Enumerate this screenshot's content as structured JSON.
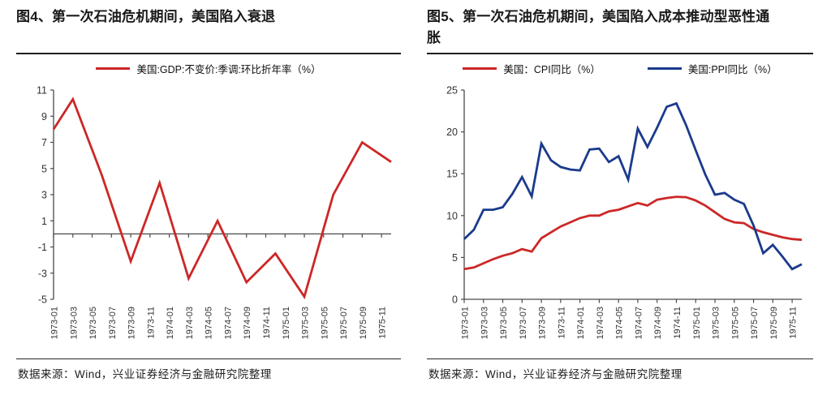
{
  "colors": {
    "red": "#cc2727",
    "blue": "#1a3a8c",
    "axis": "#4a4a4a",
    "text": "#1a1a1a"
  },
  "left_panel": {
    "title": "图4、第一次石油危机期间，美国陷入衰退",
    "source": "数据来源：Wind，兴业证券经济与金融研究院整理",
    "chart_data": {
      "type": "line",
      "title": "图4、第一次石油危机期间，美国陷入衰退",
      "ylim": [
        -5,
        11
      ],
      "y_ticks": [
        11,
        9,
        7,
        5,
        3,
        1,
        -1,
        -3,
        -5
      ],
      "x_axis_at_y": 0,
      "grid": false,
      "legend_position": "top",
      "x_domain_months": 35,
      "x_tick_labels": [
        "1973-01",
        "1973-03",
        "1973-05",
        "1973-07",
        "1973-09",
        "1973-11",
        "1974-01",
        "1974-03",
        "1974-05",
        "1974-07",
        "1974-09",
        "1974-11",
        "1975-01",
        "1975-03",
        "1975-05",
        "1975-07",
        "1975-09",
        "1975-11"
      ],
      "series": [
        {
          "key": "gdp",
          "name": "美国:GDP:不变价:季调:环比折年率（%）",
          "color": "#cc2727",
          "x_months_labels": [
            "1973-01",
            "1973-03",
            "1973-06",
            "1973-09",
            "1973-12",
            "1974-03",
            "1974-06",
            "1974-09",
            "1974-12",
            "1975-03",
            "1975-06",
            "1975-09",
            "1975-12"
          ],
          "x": [
            0,
            2,
            5,
            8,
            11,
            14,
            17,
            20,
            23,
            26,
            29,
            32,
            35
          ],
          "values": [
            8.0,
            10.3,
            4.5,
            -2.1,
            3.9,
            -3.4,
            1.0,
            -3.7,
            -1.5,
            -4.8,
            3.0,
            7.0,
            5.5
          ]
        }
      ]
    }
  },
  "right_panel": {
    "title": "图5、第一次石油危机期间，美国陷入成本推动型恶性通胀",
    "source": "数据来源：Wind，兴业证券经济与金融研究院整理",
    "chart_data": {
      "type": "line",
      "title": "图5、第一次石油危机期间，美国陷入成本推动型恶性通胀",
      "ylim": [
        0,
        25
      ],
      "y_ticks": [
        25,
        20,
        15,
        10,
        5,
        0
      ],
      "x_axis_at_y": 0,
      "grid": false,
      "legend_position": "top",
      "x_domain_months": 35,
      "x_tick_labels": [
        "1973-01",
        "1973-03",
        "1973-05",
        "1973-07",
        "1973-09",
        "1973-11",
        "1974-01",
        "1974-03",
        "1974-05",
        "1974-07",
        "1974-09",
        "1974-11",
        "1975-01",
        "1975-03",
        "1975-05",
        "1975-07",
        "1975-09",
        "1975-11"
      ],
      "x_months_monthly": [
        "1973-01",
        "1973-02",
        "1973-03",
        "1973-04",
        "1973-05",
        "1973-06",
        "1973-07",
        "1973-08",
        "1973-09",
        "1973-10",
        "1973-11",
        "1973-12",
        "1974-01",
        "1974-02",
        "1974-03",
        "1974-04",
        "1974-05",
        "1974-06",
        "1974-07",
        "1974-08",
        "1974-09",
        "1974-10",
        "1974-11",
        "1974-12",
        "1975-01",
        "1975-02",
        "1975-03",
        "1975-04",
        "1975-05",
        "1975-06",
        "1975-07",
        "1975-08",
        "1975-09",
        "1975-10",
        "1975-11",
        "1975-12"
      ],
      "series": [
        {
          "key": "cpi",
          "name": "美国：CPI同比（%）",
          "color": "#cc2727",
          "values": [
            3.6,
            3.8,
            4.3,
            4.8,
            5.2,
            5.5,
            6.0,
            5.7,
            7.3,
            8.0,
            8.7,
            9.2,
            9.7,
            10.0,
            10.0,
            10.5,
            10.7,
            11.1,
            11.5,
            11.2,
            11.9,
            12.1,
            12.25,
            12.2,
            11.8,
            11.2,
            10.4,
            9.6,
            9.2,
            9.1,
            8.4,
            8.0,
            7.7,
            7.4,
            7.2,
            7.1
          ]
        },
        {
          "key": "ppi",
          "name": "美国:PPI同比（%）",
          "color": "#1a3a8c",
          "values": [
            7.2,
            8.3,
            10.7,
            10.7,
            11.0,
            12.6,
            14.6,
            12.3,
            18.6,
            16.6,
            15.8,
            15.5,
            15.4,
            17.9,
            18.0,
            16.4,
            17.1,
            14.3,
            20.4,
            18.2,
            20.5,
            23.0,
            23.4,
            20.8,
            17.8,
            14.9,
            12.5,
            12.7,
            11.9,
            11.4,
            8.8,
            5.5,
            6.5,
            5.1,
            3.6,
            4.2
          ]
        }
      ]
    }
  }
}
